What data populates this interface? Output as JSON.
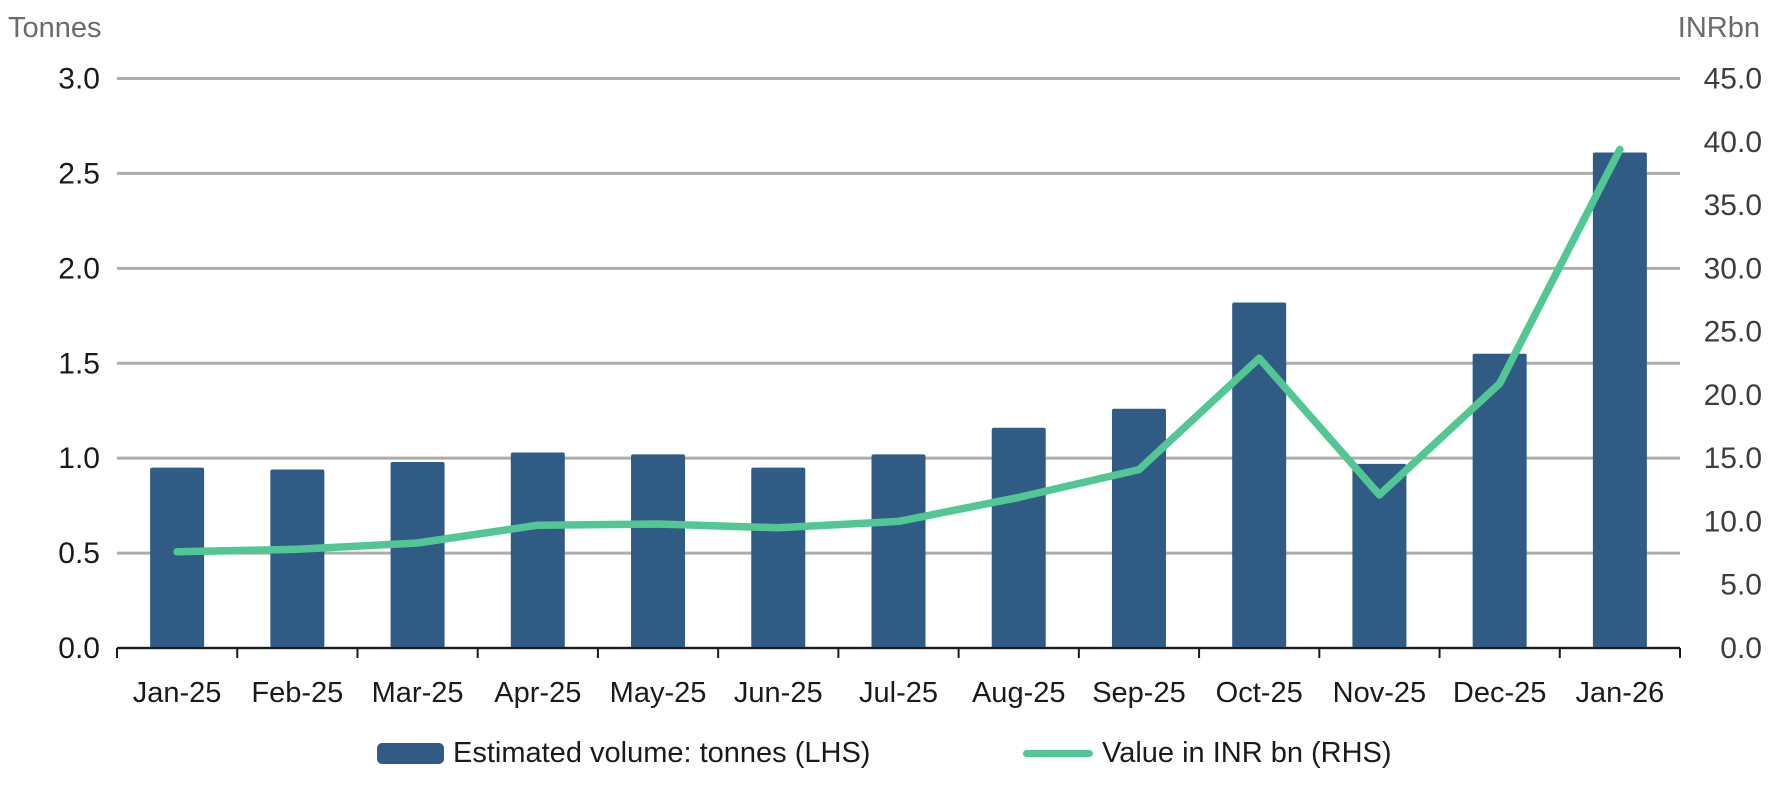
{
  "chart_data": {
    "type": "combo-bar-line",
    "title": "",
    "categories": [
      "Jan-25",
      "Feb-25",
      "Mar-25",
      "Apr-25",
      "May-25",
      "Jun-25",
      "Jul-25",
      "Aug-25",
      "Sep-25",
      "Oct-25",
      "Nov-25",
      "Dec-25",
      "Jan-26"
    ],
    "series": [
      {
        "name": "Estimated volume: tonnes (LHS)",
        "type": "bar",
        "axis": "left",
        "color": "#2F5B85",
        "values": [
          0.95,
          0.94,
          0.98,
          1.03,
          1.02,
          0.95,
          1.02,
          1.16,
          1.26,
          1.82,
          0.97,
          1.55,
          2.61
        ]
      },
      {
        "name": "Value in INR bn (RHS)",
        "type": "line",
        "axis": "right",
        "color": "#52C794",
        "values": [
          7.6,
          7.8,
          8.3,
          9.7,
          9.8,
          9.5,
          10.0,
          11.9,
          14.1,
          22.9,
          12.1,
          20.9,
          39.4
        ]
      }
    ],
    "left_axis": {
      "title": "Tonnes",
      "min": 0,
      "max": 3,
      "step": 0.5,
      "tick_labels": [
        "0.0",
        "0.5",
        "1.0",
        "1.5",
        "2.0",
        "2.5",
        "3.0"
      ]
    },
    "right_axis": {
      "title": "INRbn",
      "min": 0,
      "max": 45,
      "step": 5,
      "tick_labels": [
        "0.0",
        "5.0",
        "10.0",
        "15.0",
        "20.0",
        "25.0",
        "30.0",
        "35.0",
        "40.0",
        "45.0"
      ]
    },
    "grid": true,
    "legend_position": "bottom"
  },
  "legend": {
    "bar_label": "Estimated volume: tonnes (LHS)",
    "line_label": "Value in INR bn (RHS)"
  },
  "colors": {
    "bar": "#2F5B85",
    "line": "#52C794",
    "gridline": "#ADADAD",
    "axis_line": "#1a1a1a",
    "tick_text": "#1a1a1a",
    "right_tick_text": "#3d3d3d",
    "axis_title_text": "#6b6b6b"
  }
}
